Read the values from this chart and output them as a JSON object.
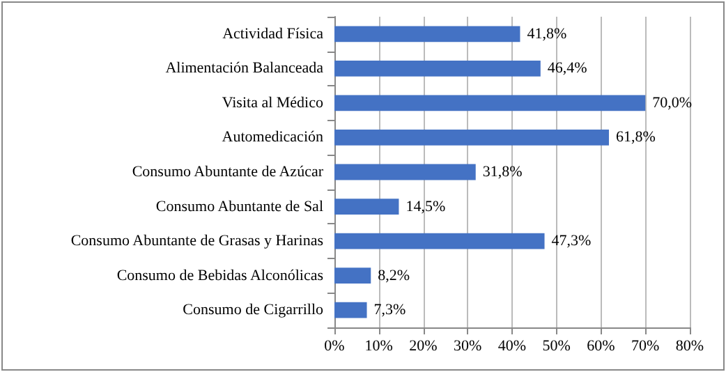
{
  "chart_data": {
    "type": "bar",
    "orientation": "horizontal",
    "categories": [
      "Actividad Física",
      "Alimentación Balanceada",
      "Visita al Médico",
      "Automedicación",
      "Consumo Abuntante de Azúcar",
      "Consumo Abuntante de Sal",
      "Consumo Abuntante de Grasas y Harinas",
      "Consumo de Bebidas Alconólicas",
      "Consumo de Cigarrillo"
    ],
    "values": [
      41.8,
      46.4,
      70.0,
      61.8,
      31.8,
      14.5,
      47.3,
      8.2,
      7.3
    ],
    "value_labels": [
      "41,8%",
      "46,4%",
      "70,0%",
      "61,8%",
      "31,8%",
      "14,5%",
      "47,3%",
      "8,2%",
      "7,3%"
    ],
    "color": "#4472c4",
    "xlim": [
      0,
      80
    ],
    "xticks": [
      {
        "value": 0,
        "label": "0%"
      },
      {
        "value": 10,
        "label": "10%"
      },
      {
        "value": 20,
        "label": "20%"
      },
      {
        "value": 30,
        "label": "30%"
      },
      {
        "value": 40,
        "label": "40%"
      },
      {
        "value": 50,
        "label": "50%"
      },
      {
        "value": 60,
        "label": "60%"
      },
      {
        "value": 70,
        "label": "70%"
      },
      {
        "value": 80,
        "label": "80%"
      }
    ],
    "grid": "x"
  }
}
